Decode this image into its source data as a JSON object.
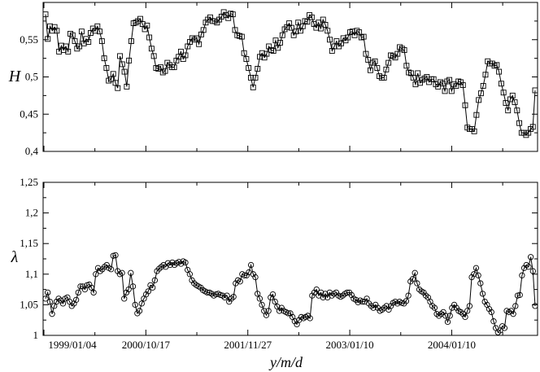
{
  "chart_data": [
    {
      "type": "line",
      "ylabel": "H",
      "ylim": [
        0.4,
        0.6
      ],
      "yticks": [
        "0,4",
        "0,45",
        "0,5",
        "0,55"
      ],
      "marker": "square",
      "color": "#000000",
      "values": [
        0.584,
        0.551,
        0.568,
        0.562,
        0.567,
        0.562,
        0.534,
        0.542,
        0.536,
        0.541,
        0.534,
        0.558,
        0.556,
        0.548,
        0.538,
        0.541,
        0.561,
        0.545,
        0.551,
        0.547,
        0.559,
        0.565,
        0.562,
        0.568,
        0.561,
        0.548,
        0.525,
        0.512,
        0.495,
        0.497,
        0.504,
        0.492,
        0.485,
        0.528,
        0.517,
        0.507,
        0.487,
        0.522,
        0.548,
        0.572,
        0.573,
        0.575,
        0.578,
        0.571,
        0.564,
        0.569,
        0.553,
        0.538,
        0.528,
        0.512,
        0.511,
        0.513,
        0.506,
        0.508,
        0.519,
        0.516,
        0.513,
        0.513,
        0.522,
        0.527,
        0.534,
        0.524,
        0.529,
        0.541,
        0.547,
        0.552,
        0.55,
        0.552,
        0.544,
        0.557,
        0.563,
        0.573,
        0.577,
        0.58,
        0.575,
        0.575,
        0.573,
        0.577,
        0.581,
        0.587,
        0.583,
        0.579,
        0.585,
        0.584,
        0.563,
        0.556,
        0.555,
        0.554,
        0.532,
        0.524,
        0.512,
        0.499,
        0.486,
        0.499,
        0.511,
        0.527,
        0.532,
        0.526,
        0.531,
        0.541,
        0.536,
        0.535,
        0.549,
        0.539,
        0.546,
        0.556,
        0.564,
        0.567,
        0.572,
        0.566,
        0.556,
        0.561,
        0.573,
        0.562,
        0.568,
        0.575,
        0.574,
        0.583,
        0.58,
        0.571,
        0.566,
        0.573,
        0.565,
        0.577,
        0.57,
        0.562,
        0.55,
        0.535,
        0.541,
        0.548,
        0.541,
        0.545,
        0.552,
        0.549,
        0.553,
        0.56,
        0.561,
        0.556,
        0.562,
        0.56,
        0.553,
        0.554,
        0.531,
        0.523,
        0.509,
        0.519,
        0.521,
        0.512,
        0.501,
        0.499,
        0.499,
        0.51,
        0.519,
        0.529,
        0.528,
        0.526,
        0.531,
        0.54,
        0.538,
        0.536,
        0.515,
        0.506,
        0.505,
        0.499,
        0.49,
        0.505,
        0.492,
        0.496,
        0.498,
        0.5,
        0.493,
        0.497,
        0.497,
        0.49,
        0.487,
        0.493,
        0.491,
        0.481,
        0.494,
        0.496,
        0.481,
        0.49,
        0.488,
        0.494,
        0.493,
        0.489,
        0.462,
        0.432,
        0.43,
        0.43,
        0.427,
        0.449,
        0.469,
        0.478,
        0.488,
        0.503,
        0.521,
        0.518,
        0.518,
        0.515,
        0.516,
        0.507,
        0.491,
        0.479,
        0.465,
        0.455,
        0.47,
        0.475,
        0.466,
        0.455,
        0.438,
        0.425,
        0.425,
        0.422,
        0.425,
        0.43,
        0.433,
        0.482
      ]
    },
    {
      "type": "line",
      "ylabel": "λ",
      "ylim": [
        1.0,
        1.25
      ],
      "yticks": [
        "1",
        "1,05",
        "1,1",
        "1,15",
        "1,2",
        "1,25"
      ],
      "xlabel": "y/m/d",
      "xtick_labels": [
        "1999/01/04",
        "2000/10/17",
        "2001/11/27",
        "2003/01/10",
        "2004/01/10"
      ],
      "marker": "circle",
      "color": "#000000",
      "values": [
        1.06,
        1.07,
        1.055,
        1.035,
        1.048,
        1.055,
        1.06,
        1.057,
        1.052,
        1.06,
        1.062,
        1.055,
        1.048,
        1.052,
        1.058,
        1.07,
        1.08,
        1.08,
        1.075,
        1.082,
        1.083,
        1.078,
        1.07,
        1.1,
        1.11,
        1.105,
        1.108,
        1.112,
        1.115,
        1.11,
        1.108,
        1.13,
        1.131,
        1.105,
        1.1,
        1.102,
        1.06,
        1.07,
        1.075,
        1.102,
        1.08,
        1.05,
        1.036,
        1.04,
        1.052,
        1.06,
        1.067,
        1.072,
        1.082,
        1.078,
        1.09,
        1.105,
        1.109,
        1.112,
        1.115,
        1.112,
        1.118,
        1.115,
        1.119,
        1.115,
        1.118,
        1.12,
        1.117,
        1.121,
        1.119,
        1.107,
        1.1,
        1.09,
        1.085,
        1.082,
        1.08,
        1.078,
        1.074,
        1.072,
        1.07,
        1.07,
        1.068,
        1.065,
        1.067,
        1.068,
        1.066,
        1.065,
        1.062,
        1.065,
        1.055,
        1.06,
        1.063,
        1.085,
        1.09,
        1.088,
        1.1,
        1.098,
        1.098,
        1.103,
        1.115,
        1.1,
        1.095,
        1.068,
        1.06,
        1.05,
        1.04,
        1.033,
        1.04,
        1.062,
        1.067,
        1.055,
        1.047,
        1.04,
        1.045,
        1.04,
        1.038,
        1.036,
        1.036,
        1.03,
        1.023,
        1.018,
        1.025,
        1.03,
        1.028,
        1.03,
        1.032,
        1.028,
        1.065,
        1.07,
        1.075,
        1.065,
        1.07,
        1.062,
        1.068,
        1.062,
        1.07,
        1.065,
        1.068,
        1.07,
        1.065,
        1.063,
        1.065,
        1.068,
        1.07,
        1.07,
        1.066,
        1.06,
        1.058,
        1.054,
        1.057,
        1.055,
        1.055,
        1.06,
        1.052,
        1.048,
        1.045,
        1.05,
        1.045,
        1.04,
        1.042,
        1.045,
        1.048,
        1.042,
        1.048,
        1.053,
        1.055,
        1.052,
        1.055,
        1.053,
        1.052,
        1.056,
        1.065,
        1.088,
        1.092,
        1.102,
        1.085,
        1.075,
        1.072,
        1.07,
        1.065,
        1.062,
        1.055,
        1.048,
        1.045,
        1.035,
        1.032,
        1.035,
        1.038,
        1.032,
        1.022,
        1.032,
        1.045,
        1.05,
        1.045,
        1.04,
        1.038,
        1.035,
        1.03,
        1.04,
        1.048,
        1.095,
        1.1,
        1.11,
        1.098,
        1.085,
        1.068,
        1.055,
        1.05,
        1.043,
        1.038,
        1.023,
        1.012,
        1.005,
        1.008,
        1.015,
        1.012,
        1.04,
        1.038,
        1.04,
        1.035,
        1.048,
        1.065,
        1.066,
        1.098,
        1.11,
        1.115,
        1.112,
        1.128,
        1.105,
        1.048
      ]
    }
  ]
}
